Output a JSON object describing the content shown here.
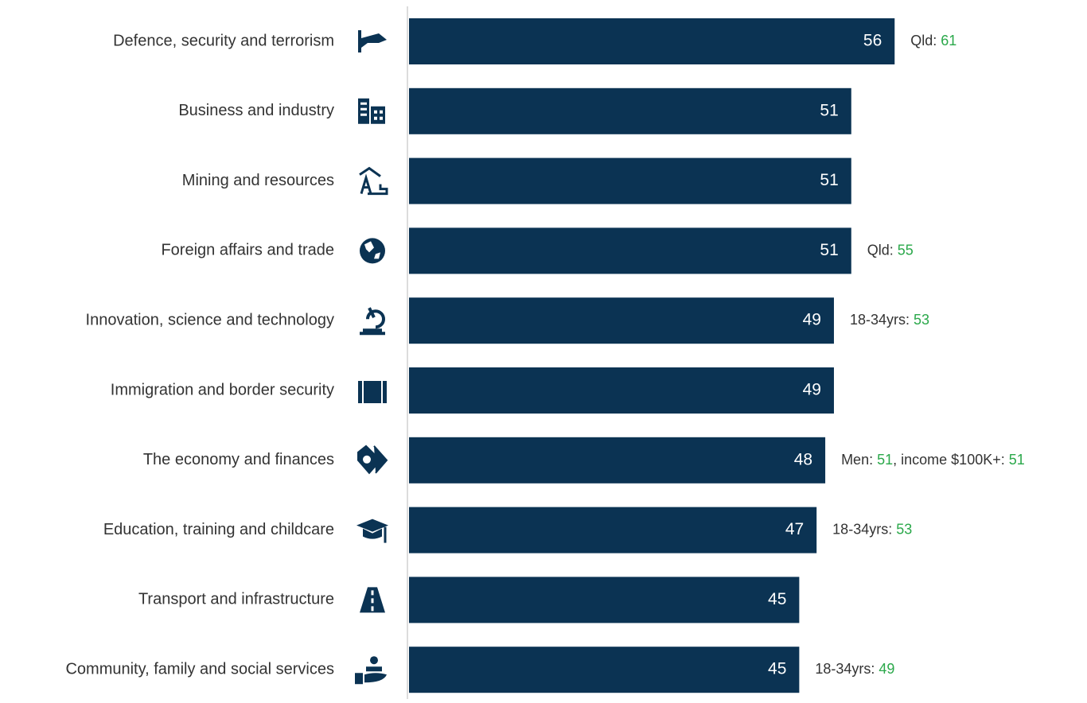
{
  "chart_data": {
    "type": "bar",
    "orientation": "horizontal",
    "categories": [
      "Defence, security and terrorism",
      "Business and industry",
      "Mining and resources",
      "Foreign affairs and trade",
      "Innovation, science and technology",
      "Immigration and border security",
      "The economy and finances",
      "Education, training and childcare",
      "Transport and infrastructure",
      "Community, family and social services"
    ],
    "values": [
      56,
      51,
      51,
      51,
      49,
      49,
      48,
      47,
      45,
      45
    ],
    "color": "#0b3353",
    "xlim": [
      0,
      78
    ],
    "annotations": [
      [
        {
          "label": "Qld:",
          "value": 61
        }
      ],
      null,
      null,
      [
        {
          "label": "Qld:",
          "value": 55
        }
      ],
      [
        {
          "label": "18-34yrs:",
          "value": 53
        }
      ],
      null,
      [
        {
          "label": "Men:",
          "value": 51
        },
        {
          "label": "income $100K+:",
          "value": 51
        }
      ],
      [
        {
          "label": "18-34yrs:",
          "value": 53
        }
      ],
      null,
      [
        {
          "label": "18-34yrs:",
          "value": 49
        }
      ]
    ],
    "annotation_separator": ",",
    "annotation_value_color": "#2aa84a"
  }
}
